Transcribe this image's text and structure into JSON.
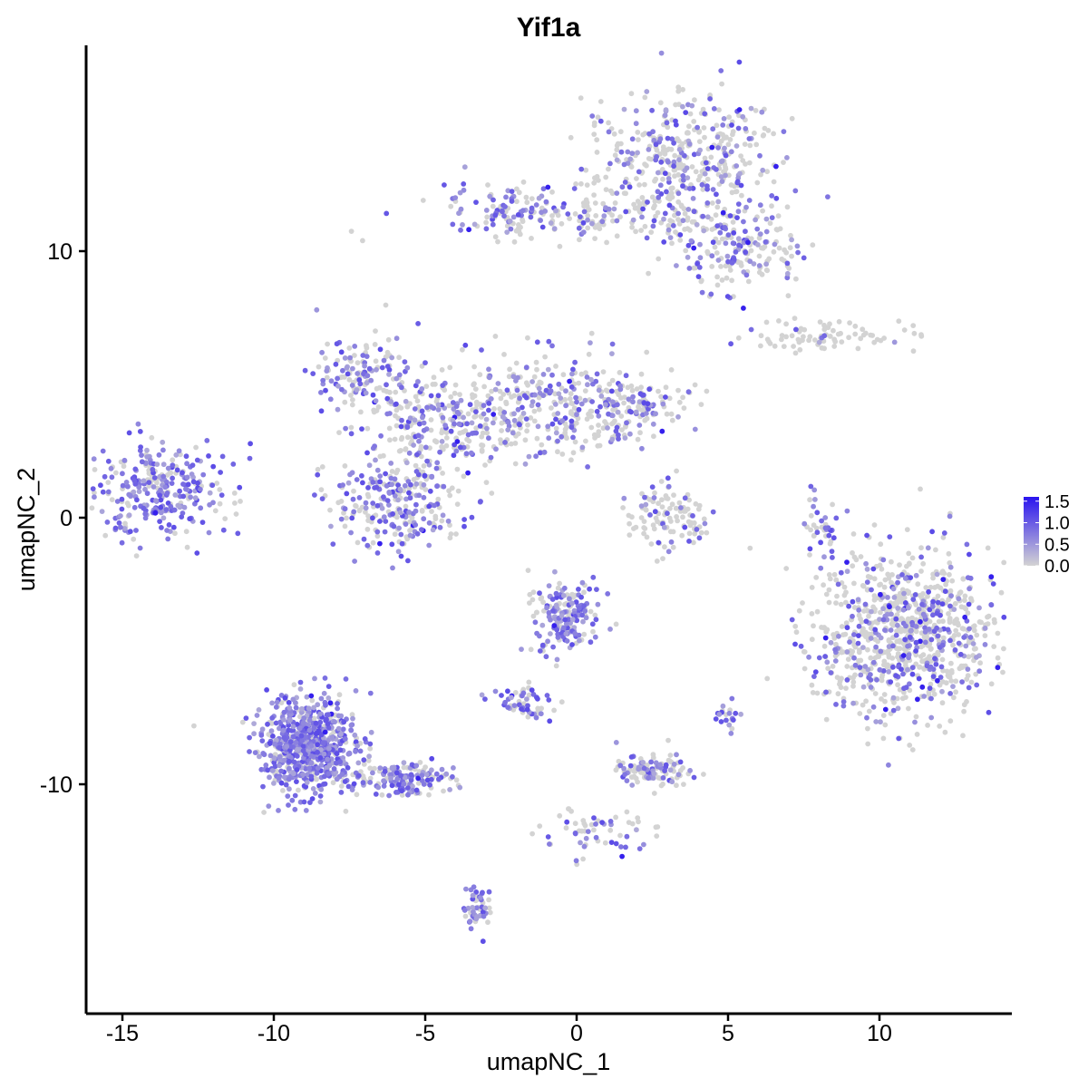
{
  "chart_data": {
    "type": "scatter",
    "title": "Yif1a",
    "xlabel": "umapNC_1",
    "ylabel": "umapNC_2",
    "xlim": [
      -16.5,
      14.5
    ],
    "ylim": [
      -18.5,
      17.5
    ],
    "x_ticks": [
      -15,
      -10,
      -5,
      0,
      5,
      10
    ],
    "x_tick_labels": [
      "-15",
      "-10",
      "-5",
      "0",
      "5",
      "10"
    ],
    "y_ticks": [
      -10,
      0,
      10
    ],
    "y_tick_labels": [
      "-10",
      "0",
      "10"
    ],
    "grid": false,
    "legend_position": "right",
    "color_scale": {
      "low_color": "#d3d3d3",
      "high_color": "#2a14ef",
      "min": 0.0,
      "max": 1.6,
      "ticks": [
        0.0,
        0.5,
        1.0,
        1.5
      ],
      "tick_labels": [
        "0.0",
        "0.5",
        "1.0",
        "1.5"
      ]
    },
    "clusters": [
      {
        "name": "top-right-large",
        "center": [
          3.5,
          13.5
        ],
        "spread": [
          1.6,
          1.2
        ],
        "count": 420,
        "expr": 0.35
      },
      {
        "name": "top-bridge",
        "center": [
          1.0,
          11.3
        ],
        "spread": [
          2.5,
          0.5
        ],
        "count": 160,
        "expr": 0.3
      },
      {
        "name": "top-left-arm",
        "center": [
          -2.3,
          11.4
        ],
        "spread": [
          0.9,
          0.5
        ],
        "count": 90,
        "expr": 0.45
      },
      {
        "name": "top-right-lower",
        "center": [
          5.3,
          10.0
        ],
        "spread": [
          1.0,
          0.8
        ],
        "count": 170,
        "expr": 0.45
      },
      {
        "name": "right-streak",
        "center": [
          8.5,
          6.8
        ],
        "spread": [
          1.4,
          0.3
        ],
        "count": 80,
        "expr": 0.15
      },
      {
        "name": "left-cluster",
        "center": [
          -13.8,
          1.0
        ],
        "spread": [
          1.2,
          0.9
        ],
        "count": 300,
        "expr": 0.7
      },
      {
        "name": "center-upper-left",
        "center": [
          -7.0,
          5.3
        ],
        "spread": [
          0.8,
          0.7
        ],
        "count": 140,
        "expr": 0.55
      },
      {
        "name": "center-hub",
        "center": [
          -4.5,
          3.5
        ],
        "spread": [
          1.3,
          1.0
        ],
        "count": 260,
        "expr": 0.45
      },
      {
        "name": "center-right-arm",
        "center": [
          -0.8,
          4.2
        ],
        "spread": [
          1.6,
          1.0
        ],
        "count": 300,
        "expr": 0.45
      },
      {
        "name": "center-right-tail",
        "center": [
          1.8,
          4.3
        ],
        "spread": [
          0.9,
          0.5
        ],
        "count": 110,
        "expr": 0.35
      },
      {
        "name": "center-lower",
        "center": [
          -5.9,
          0.6
        ],
        "spread": [
          1.1,
          0.9
        ],
        "count": 260,
        "expr": 0.5
      },
      {
        "name": "center-small",
        "center": [
          3.1,
          0.0
        ],
        "spread": [
          0.7,
          0.6
        ],
        "count": 110,
        "expr": 0.2
      },
      {
        "name": "right-big",
        "center": [
          10.8,
          -4.3
        ],
        "spread": [
          1.5,
          1.5
        ],
        "count": 900,
        "expr": 0.3
      },
      {
        "name": "right-thin",
        "center": [
          8.1,
          -0.5
        ],
        "spread": [
          0.25,
          0.8
        ],
        "count": 40,
        "expr": 0.6
      },
      {
        "name": "lower-left-big",
        "center": [
          -8.8,
          -8.5
        ],
        "spread": [
          0.8,
          0.9
        ],
        "count": 700,
        "expr": 0.8
      },
      {
        "name": "lower-left-arm",
        "center": [
          -5.8,
          -9.8
        ],
        "spread": [
          0.9,
          0.3
        ],
        "count": 160,
        "expr": 0.7
      },
      {
        "name": "lower-left-tail",
        "center": [
          -3.3,
          -14.6
        ],
        "spread": [
          0.2,
          0.5
        ],
        "count": 50,
        "expr": 0.75
      },
      {
        "name": "lower-center",
        "center": [
          -0.4,
          -3.7
        ],
        "spread": [
          0.6,
          0.7
        ],
        "count": 180,
        "expr": 0.6
      },
      {
        "name": "lower-center-arm",
        "center": [
          -1.8,
          -6.9
        ],
        "spread": [
          0.5,
          0.3
        ],
        "count": 60,
        "expr": 0.55
      },
      {
        "name": "lower-mid",
        "center": [
          2.5,
          -9.5
        ],
        "spread": [
          0.6,
          0.3
        ],
        "count": 110,
        "expr": 0.45
      },
      {
        "name": "lower-mid-tail",
        "center": [
          0.8,
          -11.8
        ],
        "spread": [
          1.0,
          0.5
        ],
        "count": 60,
        "expr": 0.4
      },
      {
        "name": "lower-small-right",
        "center": [
          5.0,
          -7.5
        ],
        "spread": [
          0.2,
          0.3
        ],
        "count": 20,
        "expr": 0.6
      }
    ]
  }
}
